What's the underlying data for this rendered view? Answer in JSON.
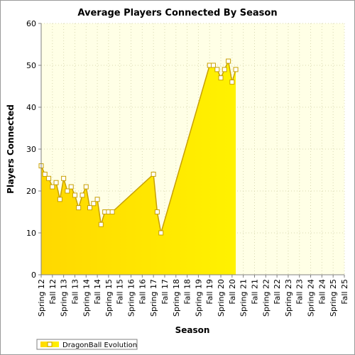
{
  "chart_data": {
    "type": "area",
    "title": "Average Players Connected By Season",
    "xlabel": "Season",
    "ylabel": "Players Connected",
    "ylim": [
      0,
      60
    ],
    "yticks": [
      0,
      10,
      20,
      30,
      40,
      50,
      60
    ],
    "grid": true,
    "legend_position": "bottom-left",
    "colors": {
      "fill_top": "#ffd800",
      "fill_bottom": "#fff200",
      "line": "#c8a000",
      "marker_fill": "#ffffff",
      "plot_bg": "#ffffe6",
      "grid": "#d8d8b0"
    },
    "categories": [
      "Spring 12",
      "Fall 12",
      "Spring 13",
      "Fall 13",
      "Spring 14",
      "Fall 14",
      "Spring 15",
      "Fall 15",
      "Spring 16",
      "Fall 16",
      "Spring 17",
      "Fall 17",
      "Spring 18",
      "Fall 18",
      "Spring 19",
      "Fall 19",
      "Spring 20",
      "Fall 20",
      "Spring 21",
      "Fall 21",
      "Spring 22",
      "Fall 22",
      "Spring 23",
      "Fall 23",
      "Spring 24",
      "Fall 24",
      "Spring 25",
      "Fall 25"
    ],
    "series": [
      {
        "name": "DragonBall Evolution",
        "points": [
          {
            "x": 0.0,
            "y": 26
          },
          {
            "x": 0.33,
            "y": 24
          },
          {
            "x": 0.67,
            "y": 23
          },
          {
            "x": 1.0,
            "y": 21
          },
          {
            "x": 1.33,
            "y": 22
          },
          {
            "x": 1.67,
            "y": 18
          },
          {
            "x": 2.0,
            "y": 23
          },
          {
            "x": 2.33,
            "y": 20
          },
          {
            "x": 2.67,
            "y": 21
          },
          {
            "x": 3.0,
            "y": 19
          },
          {
            "x": 3.33,
            "y": 16
          },
          {
            "x": 3.67,
            "y": 19
          },
          {
            "x": 4.0,
            "y": 21
          },
          {
            "x": 4.33,
            "y": 16
          },
          {
            "x": 4.67,
            "y": 17
          },
          {
            "x": 5.0,
            "y": 18
          },
          {
            "x": 5.33,
            "y": 12
          },
          {
            "x": 5.67,
            "y": 15
          },
          {
            "x": 6.0,
            "y": 15
          },
          {
            "x": 6.33,
            "y": 15
          },
          {
            "x": 10.0,
            "y": 24
          },
          {
            "x": 10.33,
            "y": 15
          },
          {
            "x": 10.67,
            "y": 10
          },
          {
            "x": 15.0,
            "y": 50
          },
          {
            "x": 15.33,
            "y": 50
          },
          {
            "x": 15.67,
            "y": 49
          },
          {
            "x": 16.0,
            "y": 47
          },
          {
            "x": 16.33,
            "y": 49
          },
          {
            "x": 16.67,
            "y": 51
          },
          {
            "x": 17.0,
            "y": 46
          },
          {
            "x": 17.33,
            "y": 49
          }
        ]
      }
    ]
  }
}
